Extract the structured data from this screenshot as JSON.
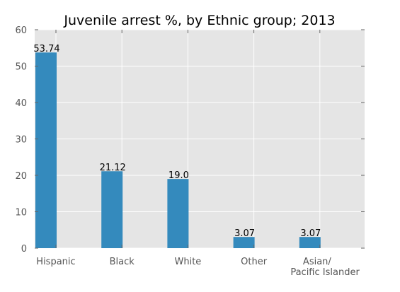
{
  "chart_data": {
    "type": "bar",
    "title": "Juvenile arrest %, by Ethnic group; 2013",
    "xlabel": "",
    "ylabel": "",
    "categories": [
      "Hispanic",
      "Black",
      "White",
      "Other",
      "Asian/\nPacific Islander"
    ],
    "values": [
      53.74,
      21.12,
      19.0,
      3.07,
      3.07
    ],
    "value_labels": [
      "53.74",
      "21.12",
      "19.0",
      "3.07",
      "3.07"
    ],
    "ylim": [
      0,
      60
    ],
    "yticks": [
      0,
      10,
      20,
      30,
      40,
      50,
      60
    ],
    "grid": true,
    "legend": "none",
    "colors": {
      "bar": "#348ABD",
      "plot_background": "#E5E5E5",
      "grid": "#FFFFFF"
    }
  }
}
